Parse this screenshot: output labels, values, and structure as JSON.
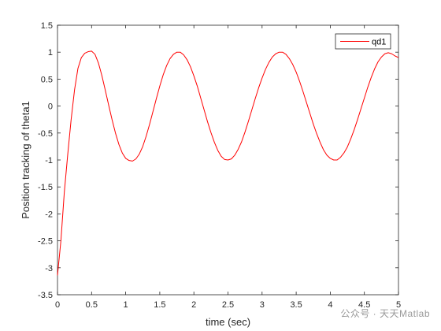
{
  "chart_data": {
    "type": "line",
    "xlabel": "time (sec)",
    "ylabel": "Position tracking of theta1",
    "xlim": [
      0,
      5
    ],
    "ylim": [
      -3.5,
      1.5
    ],
    "xticks": [
      0,
      0.5,
      1,
      1.5,
      2,
      2.5,
      3,
      3.5,
      4,
      4.5,
      5
    ],
    "xtick_labels": [
      "0",
      "0.5",
      "1",
      "1.5",
      "2",
      "2.5",
      "3",
      "3.5",
      "4",
      "4.5",
      "5"
    ],
    "yticks": [
      -3.5,
      -3,
      -2.5,
      -2,
      -1.5,
      -1,
      -0.5,
      0,
      0.5,
      1,
      1.5
    ],
    "ytick_labels": [
      "-3.5",
      "-3",
      "-2.5",
      "-2",
      "-1.5",
      "-1",
      "-0.5",
      "0",
      "0.5",
      "1",
      "1.5"
    ],
    "grid": false,
    "legend_position": "top-right",
    "series": [
      {
        "name": "qd1",
        "color": "#ff0000",
        "x": [
          0,
          0.05,
          0.1,
          0.15,
          0.2,
          0.25,
          0.3,
          0.35,
          0.4,
          0.45,
          0.5,
          0.55,
          0.6,
          0.65,
          0.7,
          0.75,
          0.8,
          0.85,
          0.9,
          0.95,
          1.0,
          1.05,
          1.1,
          1.15,
          1.2,
          1.25,
          1.3,
          1.35,
          1.4,
          1.45,
          1.5,
          1.55,
          1.6,
          1.65,
          1.7,
          1.75,
          1.8,
          1.85,
          1.9,
          1.95,
          2.0,
          2.05,
          2.1,
          2.15,
          2.2,
          2.25,
          2.3,
          2.35,
          2.4,
          2.45,
          2.5,
          2.55,
          2.6,
          2.65,
          2.7,
          2.75,
          2.8,
          2.85,
          2.9,
          2.95,
          3.0,
          3.05,
          3.1,
          3.15,
          3.2,
          3.25,
          3.3,
          3.35,
          3.4,
          3.45,
          3.5,
          3.55,
          3.6,
          3.65,
          3.7,
          3.75,
          3.8,
          3.85,
          3.9,
          3.95,
          4.0,
          4.05,
          4.1,
          4.15,
          4.2,
          4.25,
          4.3,
          4.35,
          4.4,
          4.45,
          4.5,
          4.55,
          4.6,
          4.65,
          4.7,
          4.75,
          4.8,
          4.85,
          4.9,
          4.95,
          5.0
        ],
        "y": [
          -3.14,
          -2.5,
          -1.6,
          -0.9,
          -0.25,
          0.3,
          0.7,
          0.9,
          0.98,
          1.01,
          1.02,
          0.96,
          0.8,
          0.57,
          0.3,
          0.02,
          -0.25,
          -0.5,
          -0.71,
          -0.87,
          -0.97,
          -1.01,
          -1.02,
          -0.98,
          -0.89,
          -0.75,
          -0.56,
          -0.34,
          -0.1,
          0.14,
          0.37,
          0.58,
          0.75,
          0.88,
          0.96,
          1.0,
          1.0,
          0.95,
          0.86,
          0.73,
          0.56,
          0.37,
          0.15,
          -0.07,
          -0.29,
          -0.49,
          -0.67,
          -0.82,
          -0.93,
          -0.99,
          -1.0,
          -0.98,
          -0.91,
          -0.8,
          -0.66,
          -0.48,
          -0.28,
          -0.07,
          0.14,
          0.34,
          0.52,
          0.68,
          0.81,
          0.91,
          0.97,
          1.0,
          1.0,
          0.96,
          0.88,
          0.77,
          0.63,
          0.46,
          0.27,
          0.07,
          -0.13,
          -0.33,
          -0.51,
          -0.67,
          -0.81,
          -0.91,
          -0.97,
          -1.0,
          -1.0,
          -0.95,
          -0.87,
          -0.76,
          -0.61,
          -0.44,
          -0.25,
          -0.05,
          0.15,
          0.35,
          0.53,
          0.69,
          0.82,
          0.91,
          0.97,
          0.99,
          0.97,
          0.93,
          0.9
        ]
      }
    ]
  },
  "watermark": "公众号 · 天天Matlab"
}
